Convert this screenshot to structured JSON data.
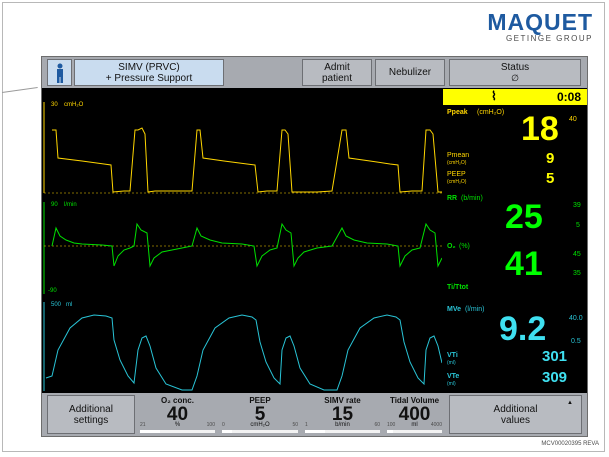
{
  "brand": {
    "name": "MAQUET",
    "sub": "GETINGE GROUP"
  },
  "topbar": {
    "mode_line1": "SIMV (PRVC)",
    "mode_line2": "+ Pressure Support",
    "admit_line1": "Admit",
    "admit_line2": "patient",
    "nebulizer": "Nebulizer",
    "status_line1": "Status",
    "status_icon": "∅"
  },
  "waves": {
    "pressure": {
      "scale": "30",
      "unit": "cmH₂O"
    },
    "flow": {
      "scale": "90",
      "unit": "l/min",
      "min": "-90"
    },
    "volume": {
      "scale": "500",
      "unit": "ml"
    }
  },
  "panel": {
    "timer": "0:08",
    "ppeak_label": "Ppeak",
    "ppeak_unit": "(cmH₂O)",
    "ppeak_value": "18",
    "ppeak_limit": "40",
    "pmean_label": "Pmean",
    "pmean_unit": "(cmH₂O)",
    "pmean_value": "9",
    "peep_label": "PEEP",
    "peep_unit": "(cmH₂O)",
    "peep_value": "5",
    "rr_label": "RR",
    "rr_unit": "(b/min)",
    "rr_value": "25",
    "rr_limit_hi": "39",
    "rr_limit_lo": "5",
    "o2_label": "O₂",
    "o2_unit": "(%)",
    "o2_value": "41",
    "o2_limit_hi": "45",
    "o2_limit_lo": "35",
    "titot_label": "Ti/Ttot",
    "mve_label": "MVe",
    "mve_unit": "(l/min)",
    "mve_value": "9.2",
    "mve_limit_hi": "40.0",
    "mve_limit_lo": "0.5",
    "vti_label": "VTi",
    "vti_unit": "(ml)",
    "vti_value": "301",
    "vte_label": "VTe",
    "vte_unit": "(ml)",
    "vte_value": "309"
  },
  "bottom": {
    "additional_settings_line1": "Additional",
    "additional_settings_line2": "settings",
    "o2": {
      "title": "O₂ conc.",
      "value": "40",
      "unit": "%",
      "min": "21",
      "max": "100",
      "level": 0.24
    },
    "peep": {
      "title": "PEEP",
      "value": "5",
      "unit": "cmH₂O",
      "min": "0",
      "max": "50",
      "level": 0.1
    },
    "simv": {
      "title": "SIMV rate",
      "value": "15",
      "unit": "b/min",
      "min": "1",
      "max": "60",
      "level": 0.24
    },
    "tidal": {
      "title": "Tidal Volume",
      "value": "400",
      "unit": "ml",
      "min": "100",
      "max": "4000",
      "level": 0.08
    },
    "additional_values_line1": "Additional",
    "additional_values_line2": "values"
  },
  "footer": "MCV00020395 REVA",
  "colors": {
    "pressure": "#ffd600",
    "flow": "#00e000",
    "volume": "#29c4d6",
    "accent": "#c9dcef",
    "timer_bg": "#ffff00"
  }
}
